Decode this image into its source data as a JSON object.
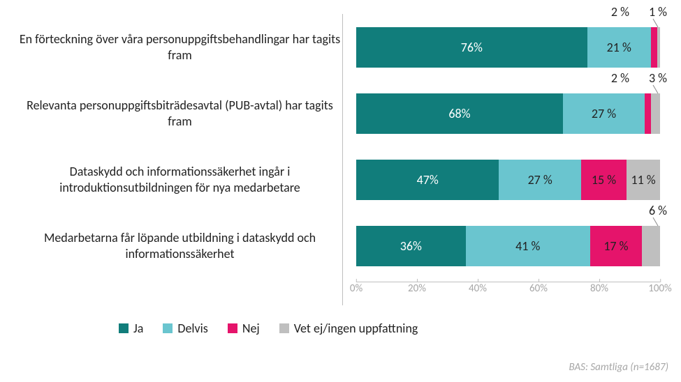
{
  "chart": {
    "type": "stacked-bar-horizontal",
    "colors": {
      "ja": "#117d7b",
      "delvis": "#6ac5cf",
      "nej": "#e5146b",
      "vetej": "#bfbfbf",
      "text_dark": "#222222",
      "text_light": "#ffffff",
      "axis": "#bfbfbf",
      "tick_label": "#a6a6a6",
      "background": "#ffffff"
    },
    "xaxis": {
      "min": 0,
      "max": 100,
      "ticks": [
        0,
        20,
        40,
        60,
        80,
        100
      ],
      "tick_labels": [
        "0%",
        "20%",
        "40%",
        "60%",
        "80%",
        "100%"
      ]
    },
    "bars": [
      {
        "label": "En förteckning över våra personuppgiftsbehandlingar har tagits fram",
        "segments": [
          {
            "key": "ja",
            "value": 76,
            "label": "76%",
            "in_bar": true
          },
          {
            "key": "delvis",
            "value": 21,
            "label": "21 %",
            "in_bar": true
          },
          {
            "key": "nej",
            "value": 2,
            "label": "2 %",
            "in_bar": false
          },
          {
            "key": "vetej",
            "value": 1,
            "label": "1 %",
            "in_bar": false
          }
        ]
      },
      {
        "label": "Relevanta personuppgiftsbiträdesavtal (PUB-avtal) har tagits fram",
        "segments": [
          {
            "key": "ja",
            "value": 68,
            "label": "68%",
            "in_bar": true
          },
          {
            "key": "delvis",
            "value": 27,
            "label": "27 %",
            "in_bar": true
          },
          {
            "key": "nej",
            "value": 2,
            "label": "2 %",
            "in_bar": false
          },
          {
            "key": "vetej",
            "value": 3,
            "label": "3 %",
            "in_bar": false
          }
        ]
      },
      {
        "label": "Dataskydd och informationssäkerhet ingår i introduktionsutbildningen för nya medarbetare",
        "segments": [
          {
            "key": "ja",
            "value": 47,
            "label": "47%",
            "in_bar": true
          },
          {
            "key": "delvis",
            "value": 27,
            "label": "27 %",
            "in_bar": true
          },
          {
            "key": "nej",
            "value": 15,
            "label": "15 %",
            "in_bar": true
          },
          {
            "key": "vetej",
            "value": 11,
            "label": "11 %",
            "in_bar": true
          }
        ]
      },
      {
        "label": "Medarbetarna får löpande utbildning i dataskydd och informationssäkerhet",
        "segments": [
          {
            "key": "ja",
            "value": 36,
            "label": "36%",
            "in_bar": true
          },
          {
            "key": "delvis",
            "value": 41,
            "label": "41 %",
            "in_bar": true
          },
          {
            "key": "nej",
            "value": 17,
            "label": "17 %",
            "in_bar": true
          },
          {
            "key": "vetej",
            "value": 6,
            "label": "6 %",
            "in_bar": false
          }
        ]
      }
    ],
    "legend": [
      {
        "key": "ja",
        "label": "Ja"
      },
      {
        "key": "delvis",
        "label": "Delvis"
      },
      {
        "key": "nej",
        "label": "Nej"
      },
      {
        "key": "vetej",
        "label": "Vet ej/ingen uppfattning"
      }
    ],
    "footnote": "BAS: Samtliga (n=1687)"
  }
}
